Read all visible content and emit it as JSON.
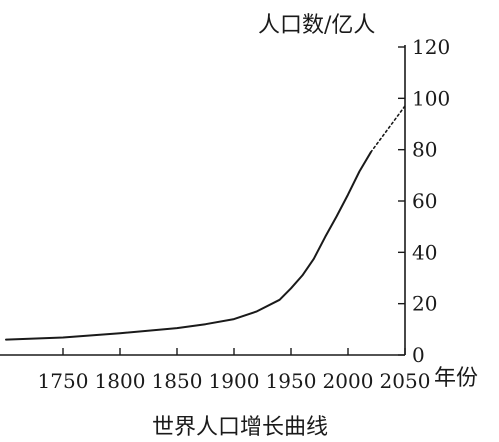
{
  "chart_data": {
    "type": "line",
    "title": "世界人口增长曲线",
    "xlabel": "年份",
    "ylabel": "人口数/亿人",
    "xlim": [
      1700,
      2050
    ],
    "ylim": [
      0,
      120
    ],
    "x_ticks": [
      "1750",
      "1800",
      "1850",
      "1900",
      "1950",
      "2000",
      "2050"
    ],
    "y_ticks": [
      "0",
      "20",
      "40",
      "60",
      "80",
      "100",
      "120"
    ],
    "grid": false,
    "series": [
      {
        "points": [
          [
            1700,
            6
          ],
          [
            1750,
            6.8
          ],
          [
            1800,
            8.5
          ],
          [
            1850,
            10.5
          ],
          [
            1875,
            12
          ],
          [
            1900,
            14
          ],
          [
            1920,
            17
          ],
          [
            1940,
            21.5
          ],
          [
            1950,
            26
          ],
          [
            1960,
            31
          ],
          [
            1970,
            37.5
          ],
          [
            1980,
            46
          ],
          [
            1990,
            54
          ],
          [
            2000,
            62.5
          ],
          [
            2010,
            71.5
          ],
          [
            2020,
            79
          ]
        ]
      },
      {
        "style": "dashed",
        "points": [
          [
            2020,
            79
          ],
          [
            2030,
            85
          ],
          [
            2040,
            91
          ],
          [
            2050,
            97
          ]
        ]
      }
    ]
  },
  "colors": {
    "ink": "#1a1a1a",
    "background": "#ffffff"
  }
}
